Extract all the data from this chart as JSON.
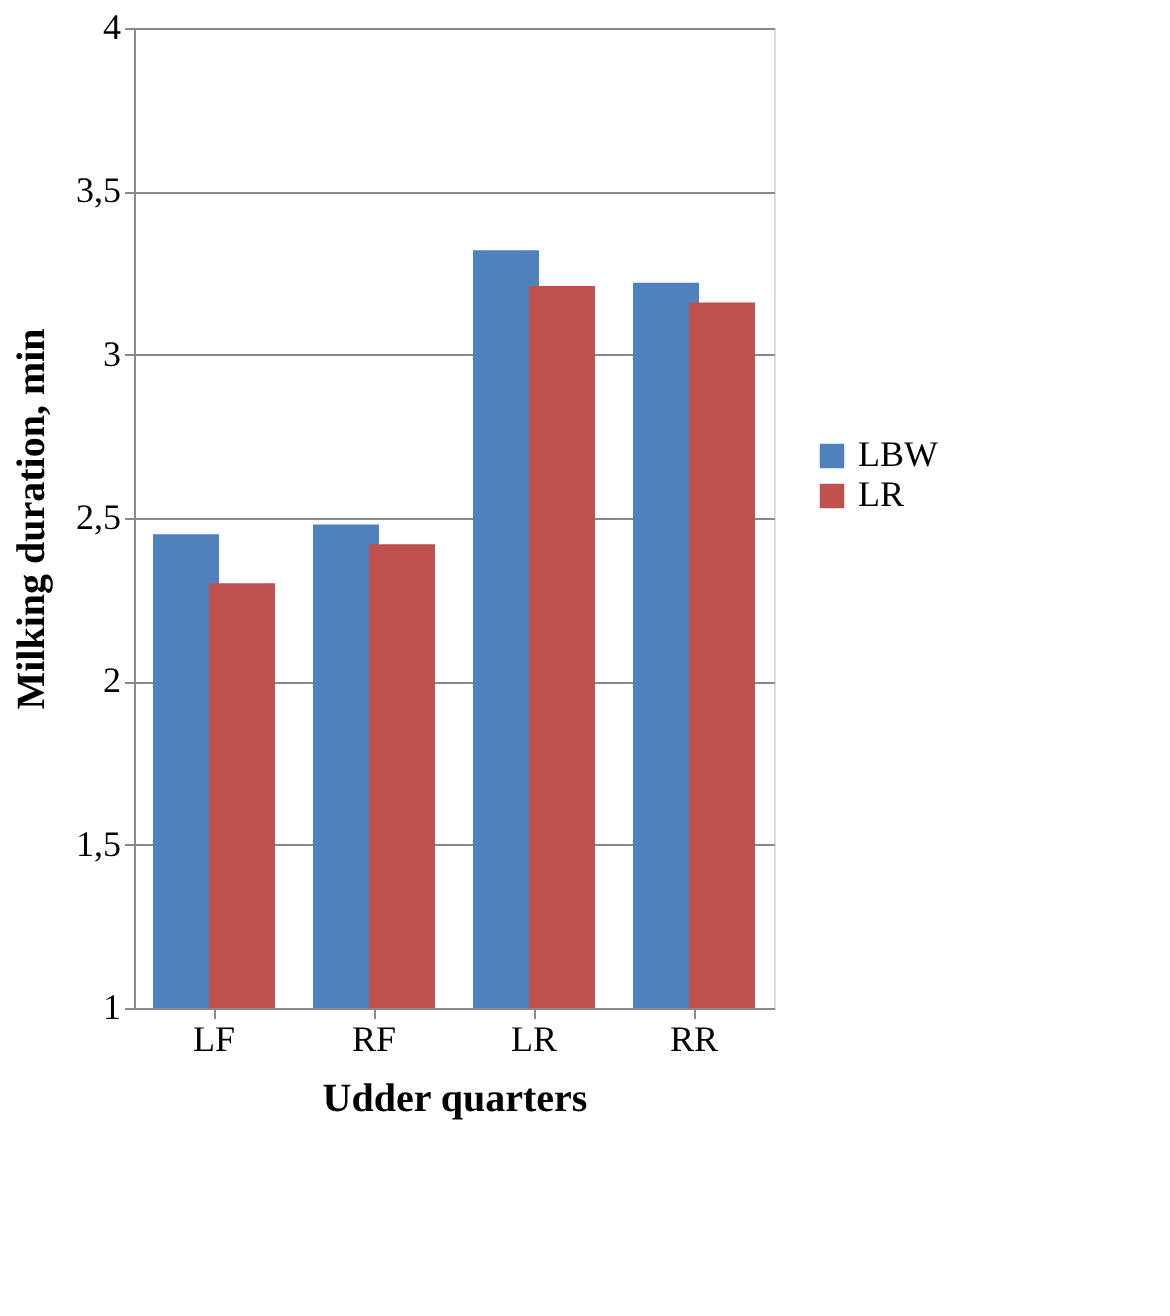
{
  "chart_data": {
    "type": "bar",
    "xlabel": "Udder quarters",
    "ylabel": "Milking duration, min",
    "categories": [
      "LF",
      "RF",
      "LR",
      "RR"
    ],
    "series": [
      {
        "name": "LBW",
        "color": "#4f81bd",
        "values": [
          2.45,
          2.48,
          3.32,
          3.22
        ]
      },
      {
        "name": "LR",
        "color": "#c0504d",
        "values": [
          2.3,
          2.42,
          3.21,
          3.16
        ]
      }
    ],
    "ylim": [
      1,
      4
    ],
    "yticks": [
      1,
      {
        "value": 1.5,
        "label": "1,5"
      },
      2,
      {
        "value": 2.5,
        "label": "2,5"
      },
      3,
      {
        "value": 3.5,
        "label": "3,5"
      },
      4
    ],
    "grid": "y",
    "legend": "right"
  }
}
